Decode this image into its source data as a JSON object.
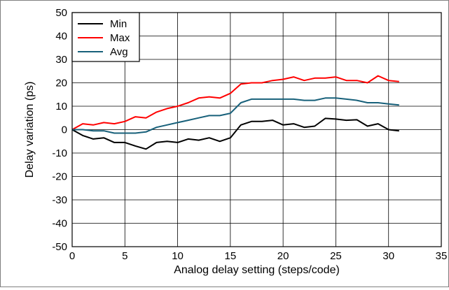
{
  "chart_data": {
    "type": "line",
    "xlabel": "Analog delay setting (steps/code)",
    "ylabel": "Delay variation (ps)",
    "xlim": [
      0,
      35
    ],
    "ylim": [
      -50,
      50
    ],
    "xticks": [
      0,
      5,
      10,
      15,
      20,
      25,
      30,
      35
    ],
    "yticks": [
      -50,
      -40,
      -30,
      -20,
      -10,
      0,
      10,
      20,
      30,
      40,
      50
    ],
    "grid": true,
    "legend_position": "top-left",
    "x": [
      0,
      1,
      2,
      3,
      4,
      5,
      6,
      7,
      8,
      9,
      10,
      11,
      12,
      13,
      14,
      15,
      16,
      17,
      18,
      19,
      20,
      21,
      22,
      23,
      24,
      25,
      26,
      27,
      28,
      29,
      30,
      31
    ],
    "series": [
      {
        "name": "Min",
        "color": "#000000",
        "values": [
          0,
          -2.5,
          -4,
          -3.5,
          -5.5,
          -5.5,
          -7,
          -8.3,
          -5.5,
          -5,
          -5.5,
          -4,
          -4.5,
          -3.5,
          -5,
          -3.5,
          2,
          3.5,
          3.5,
          4,
          2,
          2.5,
          1,
          1.5,
          4.8,
          4.5,
          4,
          4.2,
          1.5,
          2.5,
          0,
          -0.5
        ]
      },
      {
        "name": "Max",
        "color": "#ff0000",
        "values": [
          0,
          2.5,
          2,
          3,
          2.5,
          3.5,
          5.5,
          5,
          7.5,
          9,
          10,
          11.5,
          13.5,
          14,
          13.5,
          15.5,
          19.5,
          20,
          20,
          21,
          21.5,
          22.5,
          21,
          22,
          22,
          22.5,
          21,
          21,
          20,
          23,
          21,
          20.5
        ]
      },
      {
        "name": "Avg",
        "color": "#17607a",
        "values": [
          0,
          0,
          -0.5,
          -0.5,
          -1.5,
          -1.5,
          -1.5,
          -1,
          1,
          2,
          3,
          4,
          5,
          6,
          6,
          7,
          11.5,
          13,
          13,
          13,
          13,
          13,
          12.5,
          12.5,
          13.5,
          13.5,
          13,
          12.5,
          11.5,
          11.5,
          11,
          10.5
        ]
      }
    ]
  }
}
